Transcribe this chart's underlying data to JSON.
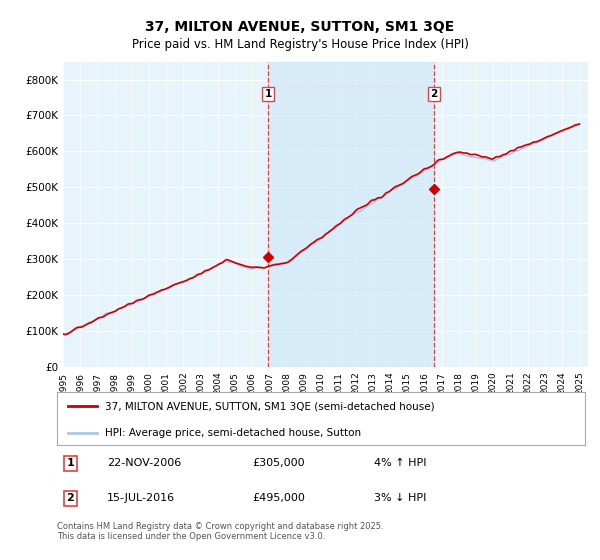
{
  "title": "37, MILTON AVENUE, SUTTON, SM1 3QE",
  "subtitle": "Price paid vs. HM Land Registry's House Price Index (HPI)",
  "yticks": [
    0,
    100000,
    200000,
    300000,
    400000,
    500000,
    600000,
    700000,
    800000
  ],
  "ytick_labels": [
    "£0",
    "£100K",
    "£200K",
    "£300K",
    "£400K",
    "£500K",
    "£600K",
    "£700K",
    "£800K"
  ],
  "hpi_color": "#a8c8e8",
  "price_color": "#cc0000",
  "vline_color": "#dd4444",
  "shade_color": "#d0e8f8",
  "background_color": "#ffffff",
  "plot_bg": "#e8f4fb",
  "grid_color": "#ffffff",
  "marker1_date": "22-NOV-2006",
  "marker1_price": 305000,
  "marker1_pct": "4%",
  "marker1_dir": "↑",
  "marker2_date": "15-JUL-2016",
  "marker2_price": 495000,
  "marker2_pct": "3%",
  "marker2_dir": "↓",
  "legend_line1": "37, MILTON AVENUE, SUTTON, SM1 3QE (semi-detached house)",
  "legend_line2": "HPI: Average price, semi-detached house, Sutton",
  "footer": "Contains HM Land Registry data © Crown copyright and database right 2025.\nThis data is licensed under the Open Government Licence v3.0.",
  "sale1_x": 2006.917,
  "sale2_x": 2016.542
}
